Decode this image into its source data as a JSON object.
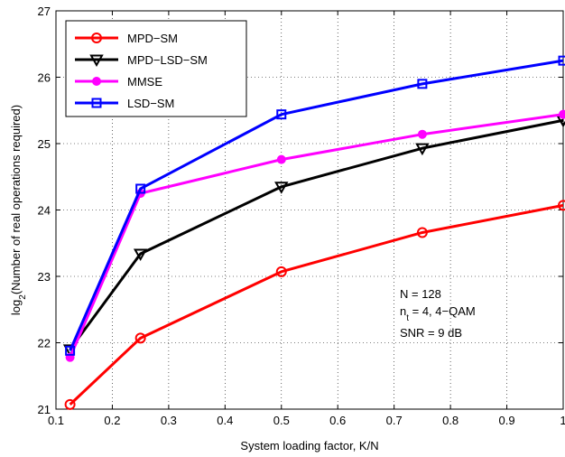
{
  "chart_data": {
    "type": "line",
    "xlabel": "System loading factor, K/N",
    "ylabel_base": "log",
    "ylabel_sub": "2",
    "ylabel_rest": "(Number of real operations required)",
    "xlim": [
      0.1,
      1.0
    ],
    "ylim": [
      21,
      27
    ],
    "xticks": [
      "0.1",
      "0.2",
      "0.3",
      "0.4",
      "0.5",
      "0.6",
      "0.7",
      "0.8",
      "0.9",
      "1"
    ],
    "yticks": [
      "21",
      "22",
      "23",
      "24",
      "25",
      "26",
      "27"
    ],
    "grid": true,
    "legend_position": "top-left",
    "x": [
      0.125,
      0.25,
      0.5,
      0.75,
      1.0
    ],
    "series": [
      {
        "name": "MPD−SM",
        "color": "#ff0000",
        "marker": "circle",
        "values": [
          21.07,
          22.07,
          23.07,
          23.66,
          24.07
        ]
      },
      {
        "name": "MPD−LSD−SM",
        "color": "#000000",
        "marker": "triangle-down",
        "values": [
          21.9,
          23.34,
          24.35,
          24.93,
          25.35
        ]
      },
      {
        "name": "MMSE",
        "color": "#ff00ff",
        "marker": "filled-circle",
        "values": [
          21.78,
          24.25,
          24.76,
          25.14,
          25.44
        ]
      },
      {
        "name": "LSD−SM",
        "color": "#0000ff",
        "marker": "square",
        "values": [
          21.88,
          24.32,
          25.44,
          25.9,
          26.25
        ]
      }
    ],
    "annotation": {
      "line1": "N = 128",
      "line2_base": "n",
      "line2_sub": "t",
      "line2_rest": " = 4,   4−QAM",
      "line3": "SNR = 9 dB"
    }
  }
}
